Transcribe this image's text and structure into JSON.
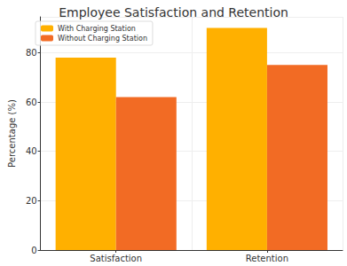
{
  "chart_data": {
    "type": "bar",
    "title": "Employee Satisfaction and Retention",
    "y_label": "Percentage (%)",
    "categories": [
      "Satisfaction",
      "Retention"
    ],
    "series": [
      {
        "name": "With Charging Station",
        "color": "#FFB000",
        "values": [
          78,
          90
        ]
      },
      {
        "name": "Without Charging Station",
        "color": "#F26B24",
        "values": [
          62,
          75
        ]
      }
    ],
    "ylim": [
      0,
      94.5
    ],
    "yticks": [
      0,
      20,
      40,
      60,
      80
    ],
    "grid": true,
    "legend": "upper left"
  }
}
